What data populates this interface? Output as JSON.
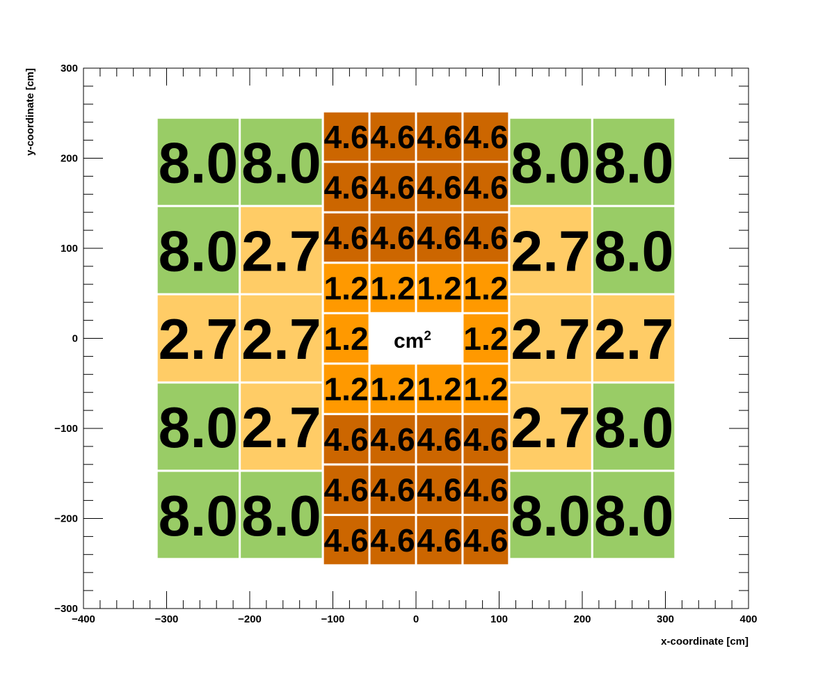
{
  "chart_data": {
    "type": "heatmap",
    "title": "",
    "xlabel": "x-coordinate [cm]",
    "ylabel": "y-coordinate [cm]",
    "xlim": [
      -400,
      400
    ],
    "ylim": [
      -300,
      300
    ],
    "x_ticks": [
      -400,
      -300,
      -200,
      -100,
      0,
      100,
      200,
      300,
      400
    ],
    "y_ticks": [
      -300,
      -200,
      -100,
      0,
      100,
      200,
      300
    ],
    "x_tick_labels": [
      "−400",
      "−300",
      "−200",
      "−100",
      "0",
      "100",
      "200",
      "300",
      "400"
    ],
    "y_tick_labels": [
      "−300",
      "−200",
      "−100",
      "0",
      "100",
      "200",
      "300"
    ],
    "unit_label": "cm",
    "unit_exponent": "2",
    "colors": {
      "small": "#ff9900",
      "medium": "#cc6600",
      "large": "#ffcc66",
      "xlarge": "#99cc66",
      "border": "#ffffff",
      "frame": "#000000"
    },
    "cells": [
      {
        "x0": -312,
        "x1": -212,
        "y0": -245,
        "y1": -147,
        "value": "8.0",
        "tone": "xlarge"
      },
      {
        "x0": -212,
        "x1": -112,
        "y0": -245,
        "y1": -147,
        "value": "8.0",
        "tone": "xlarge"
      },
      {
        "x0": -312,
        "x1": -212,
        "y0": -147,
        "y1": -49,
        "value": "8.0",
        "tone": "xlarge"
      },
      {
        "x0": -212,
        "x1": -112,
        "y0": -147,
        "y1": -49,
        "value": "2.7",
        "tone": "large"
      },
      {
        "x0": -312,
        "x1": -212,
        "y0": -49,
        "y1": 49,
        "value": "2.7",
        "tone": "large"
      },
      {
        "x0": -212,
        "x1": -112,
        "y0": -49,
        "y1": 49,
        "value": "2.7",
        "tone": "large"
      },
      {
        "x0": -312,
        "x1": -212,
        "y0": 49,
        "y1": 147,
        "value": "8.0",
        "tone": "xlarge"
      },
      {
        "x0": -212,
        "x1": -112,
        "y0": 49,
        "y1": 147,
        "value": "2.7",
        "tone": "large"
      },
      {
        "x0": -312,
        "x1": -212,
        "y0": 147,
        "y1": 245,
        "value": "8.0",
        "tone": "xlarge"
      },
      {
        "x0": -212,
        "x1": -112,
        "y0": 147,
        "y1": 245,
        "value": "8.0",
        "tone": "xlarge"
      },
      {
        "x0": 112,
        "x1": 212,
        "y0": -245,
        "y1": -147,
        "value": "8.0",
        "tone": "xlarge"
      },
      {
        "x0": 212,
        "x1": 312,
        "y0": -245,
        "y1": -147,
        "value": "8.0",
        "tone": "xlarge"
      },
      {
        "x0": 112,
        "x1": 212,
        "y0": -147,
        "y1": -49,
        "value": "2.7",
        "tone": "large"
      },
      {
        "x0": 212,
        "x1": 312,
        "y0": -147,
        "y1": -49,
        "value": "8.0",
        "tone": "xlarge"
      },
      {
        "x0": 112,
        "x1": 212,
        "y0": -49,
        "y1": 49,
        "value": "2.7",
        "tone": "large"
      },
      {
        "x0": 212,
        "x1": 312,
        "y0": -49,
        "y1": 49,
        "value": "2.7",
        "tone": "large"
      },
      {
        "x0": 112,
        "x1": 212,
        "y0": 49,
        "y1": 147,
        "value": "2.7",
        "tone": "large"
      },
      {
        "x0": 212,
        "x1": 312,
        "y0": 49,
        "y1": 147,
        "value": "8.0",
        "tone": "xlarge"
      },
      {
        "x0": 112,
        "x1": 212,
        "y0": 147,
        "y1": 245,
        "value": "8.0",
        "tone": "xlarge"
      },
      {
        "x0": 212,
        "x1": 312,
        "y0": 147,
        "y1": 245,
        "value": "8.0",
        "tone": "xlarge"
      },
      {
        "x0": -112,
        "x1": -56,
        "y0": -252,
        "y1": -196,
        "value": "4.6",
        "tone": "medium"
      },
      {
        "x0": -56,
        "x1": 0,
        "y0": -252,
        "y1": -196,
        "value": "4.6",
        "tone": "medium"
      },
      {
        "x0": 0,
        "x1": 56,
        "y0": -252,
        "y1": -196,
        "value": "4.6",
        "tone": "medium"
      },
      {
        "x0": 56,
        "x1": 112,
        "y0": -252,
        "y1": -196,
        "value": "4.6",
        "tone": "medium"
      },
      {
        "x0": -112,
        "x1": -56,
        "y0": -196,
        "y1": -140,
        "value": "4.6",
        "tone": "medium"
      },
      {
        "x0": -56,
        "x1": 0,
        "y0": -196,
        "y1": -140,
        "value": "4.6",
        "tone": "medium"
      },
      {
        "x0": 0,
        "x1": 56,
        "y0": -196,
        "y1": -140,
        "value": "4.6",
        "tone": "medium"
      },
      {
        "x0": 56,
        "x1": 112,
        "y0": -196,
        "y1": -140,
        "value": "4.6",
        "tone": "medium"
      },
      {
        "x0": -112,
        "x1": -56,
        "y0": -140,
        "y1": -84,
        "value": "4.6",
        "tone": "medium"
      },
      {
        "x0": -56,
        "x1": 0,
        "y0": -140,
        "y1": -84,
        "value": "4.6",
        "tone": "medium"
      },
      {
        "x0": 0,
        "x1": 56,
        "y0": -140,
        "y1": -84,
        "value": "4.6",
        "tone": "medium"
      },
      {
        "x0": 56,
        "x1": 112,
        "y0": -140,
        "y1": -84,
        "value": "4.6",
        "tone": "medium"
      },
      {
        "x0": -112,
        "x1": -56,
        "y0": -84,
        "y1": -28,
        "value": "1.2",
        "tone": "small"
      },
      {
        "x0": -56,
        "x1": 0,
        "y0": -84,
        "y1": -28,
        "value": "1.2",
        "tone": "small"
      },
      {
        "x0": 0,
        "x1": 56,
        "y0": -84,
        "y1": -28,
        "value": "1.2",
        "tone": "small"
      },
      {
        "x0": 56,
        "x1": 112,
        "y0": -84,
        "y1": -28,
        "value": "1.2",
        "tone": "small"
      },
      {
        "x0": -112,
        "x1": -56,
        "y0": -28,
        "y1": 28,
        "value": "1.2",
        "tone": "small"
      },
      {
        "x0": 56,
        "x1": 112,
        "y0": -28,
        "y1": 28,
        "value": "1.2",
        "tone": "small"
      },
      {
        "x0": -112,
        "x1": -56,
        "y0": 28,
        "y1": 84,
        "value": "1.2",
        "tone": "small"
      },
      {
        "x0": -56,
        "x1": 0,
        "y0": 28,
        "y1": 84,
        "value": "1.2",
        "tone": "small"
      },
      {
        "x0": 0,
        "x1": 56,
        "y0": 28,
        "y1": 84,
        "value": "1.2",
        "tone": "small"
      },
      {
        "x0": 56,
        "x1": 112,
        "y0": 28,
        "y1": 84,
        "value": "1.2",
        "tone": "small"
      },
      {
        "x0": -112,
        "x1": -56,
        "y0": 84,
        "y1": 140,
        "value": "4.6",
        "tone": "medium"
      },
      {
        "x0": -56,
        "x1": 0,
        "y0": 84,
        "y1": 140,
        "value": "4.6",
        "tone": "medium"
      },
      {
        "x0": 0,
        "x1": 56,
        "y0": 84,
        "y1": 140,
        "value": "4.6",
        "tone": "medium"
      },
      {
        "x0": 56,
        "x1": 112,
        "y0": 84,
        "y1": 140,
        "value": "4.6",
        "tone": "medium"
      },
      {
        "x0": -112,
        "x1": -56,
        "y0": 140,
        "y1": 196,
        "value": "4.6",
        "tone": "medium"
      },
      {
        "x0": -56,
        "x1": 0,
        "y0": 140,
        "y1": 196,
        "value": "4.6",
        "tone": "medium"
      },
      {
        "x0": 0,
        "x1": 56,
        "y0": 140,
        "y1": 196,
        "value": "4.6",
        "tone": "medium"
      },
      {
        "x0": 56,
        "x1": 112,
        "y0": 140,
        "y1": 196,
        "value": "4.6",
        "tone": "medium"
      },
      {
        "x0": -112,
        "x1": -56,
        "y0": 196,
        "y1": 252,
        "value": "4.6",
        "tone": "medium"
      },
      {
        "x0": -56,
        "x1": 0,
        "y0": 196,
        "y1": 252,
        "value": "4.6",
        "tone": "medium"
      },
      {
        "x0": 0,
        "x1": 56,
        "y0": 196,
        "y1": 252,
        "value": "4.6",
        "tone": "medium"
      },
      {
        "x0": 56,
        "x1": 112,
        "y0": 196,
        "y1": 252,
        "value": "4.6",
        "tone": "medium"
      }
    ]
  }
}
